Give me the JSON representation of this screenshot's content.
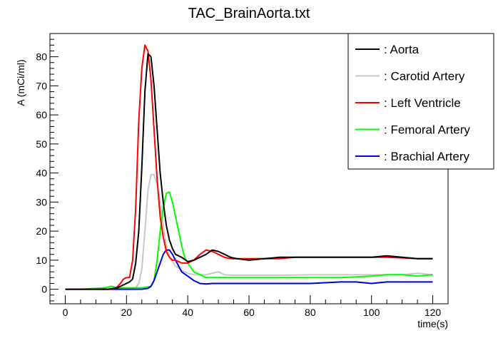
{
  "chart_data": {
    "type": "line",
    "title": "TAC_BrainAorta.txt",
    "xlabel": "time(s)",
    "ylabel": "A (mCi/ml)",
    "xlim": [
      -5,
      125
    ],
    "ylim": [
      -5,
      88
    ],
    "xticks": [
      0,
      20,
      40,
      60,
      80,
      100,
      120
    ],
    "yticks": [
      0,
      10,
      20,
      30,
      40,
      50,
      60,
      70,
      80
    ],
    "grid": false,
    "legend_position": "top-right",
    "series": [
      {
        "name": ": Aorta",
        "color": "#000000",
        "x": [
          0,
          5,
          10,
          14,
          17,
          19,
          21,
          22,
          23,
          24,
          25,
          26,
          27,
          28,
          29,
          30,
          31,
          32,
          33,
          34,
          35,
          36,
          38,
          40,
          42,
          44,
          46,
          48,
          50,
          52,
          54,
          56,
          60,
          65,
          70,
          75,
          80,
          85,
          90,
          95,
          100,
          105,
          110,
          115,
          120
        ],
        "y": [
          0,
          0,
          0,
          0,
          0.5,
          1.5,
          2.5,
          3.5,
          9,
          20,
          42,
          68,
          81,
          80,
          70,
          55,
          40,
          30,
          22,
          17,
          14,
          12,
          11,
          9.5,
          10,
          11,
          12,
          13.5,
          13,
          12,
          11,
          10.5,
          10,
          10.5,
          11,
          11,
          11,
          11,
          11,
          11,
          11,
          11.5,
          11,
          10.5,
          10.5
        ]
      },
      {
        "name": ": Carotid Artery",
        "color": "#c8c8c8",
        "x": [
          0,
          5,
          10,
          15,
          20,
          22,
          23,
          24,
          25,
          26,
          27,
          28,
          29,
          30,
          31,
          32,
          33,
          34,
          36,
          38,
          40,
          42,
          44,
          46,
          48,
          50,
          52,
          55,
          60,
          70,
          80,
          90,
          100,
          110,
          115,
          120
        ],
        "y": [
          0,
          0,
          0,
          0,
          0,
          0,
          0.5,
          2,
          7,
          20,
          34,
          39.5,
          39.5,
          36,
          30,
          22,
          15,
          11,
          8,
          6.5,
          5.5,
          5,
          5,
          5,
          5.5,
          6,
          5,
          4.8,
          4.8,
          4.8,
          5,
          5,
          5,
          5,
          5.5,
          5
        ]
      },
      {
        "name": ": Left Ventricle",
        "color": "#ff0000",
        "x": [
          0,
          5,
          10,
          15,
          16,
          17,
          18,
          19,
          20,
          21,
          22,
          23,
          24,
          25,
          26,
          27,
          28,
          29,
          30,
          31,
          32,
          33,
          34,
          35,
          36,
          38,
          40,
          42,
          44,
          46,
          48,
          50,
          52,
          54,
          56,
          60,
          65,
          70,
          75,
          80,
          85,
          90,
          95,
          100,
          105,
          110,
          115,
          120
        ],
        "y": [
          0,
          0,
          0,
          0,
          0.3,
          0.8,
          2,
          3.5,
          4,
          4,
          10,
          28,
          58,
          76,
          84,
          82,
          72,
          55,
          38,
          25,
          18,
          13,
          11,
          10,
          10,
          9,
          9,
          10,
          12,
          13.5,
          13,
          12,
          11,
          10.5,
          10.5,
          10.5,
          10.5,
          10.5,
          11,
          11,
          11,
          11,
          11,
          11,
          11,
          10.8,
          10.5,
          10.5
        ]
      },
      {
        "name": ": Femoral Artery",
        "color": "#00ff00",
        "x": [
          0,
          5,
          10,
          13,
          15,
          17,
          20,
          25,
          28,
          29,
          30,
          31,
          32,
          33,
          34,
          35,
          36,
          37,
          38,
          39,
          40,
          42,
          44,
          46,
          48,
          50,
          55,
          60,
          70,
          80,
          90,
          100,
          105,
          110,
          115,
          120
        ],
        "y": [
          0,
          0,
          0.3,
          0.5,
          1,
          0.5,
          0.5,
          0.5,
          1,
          3,
          10,
          20,
          28,
          33,
          33.5,
          30,
          25,
          20,
          15,
          11,
          9,
          6,
          5,
          4,
          4,
          4,
          4,
          4,
          4,
          4,
          4,
          4.5,
          5,
          5,
          4.5,
          5
        ]
      },
      {
        "name": ": Brachial Artery",
        "color": "#0000dd",
        "x": [
          0,
          5,
          10,
          15,
          20,
          25,
          27,
          28,
          29,
          30,
          31,
          32,
          33,
          34,
          35,
          36,
          37,
          38,
          40,
          42,
          44,
          46,
          48,
          50,
          55,
          60,
          70,
          80,
          90,
          95,
          100,
          105,
          110,
          115,
          120
        ],
        "y": [
          0,
          0,
          0,
          0,
          0,
          0,
          0.3,
          1,
          3,
          6,
          9,
          12,
          13.5,
          13.5,
          12,
          10,
          8,
          6,
          4.5,
          3,
          2,
          1.8,
          2,
          2,
          2,
          2,
          2,
          2,
          2.5,
          2.5,
          2,
          2.5,
          2.5,
          2.5,
          2.5
        ]
      }
    ]
  }
}
